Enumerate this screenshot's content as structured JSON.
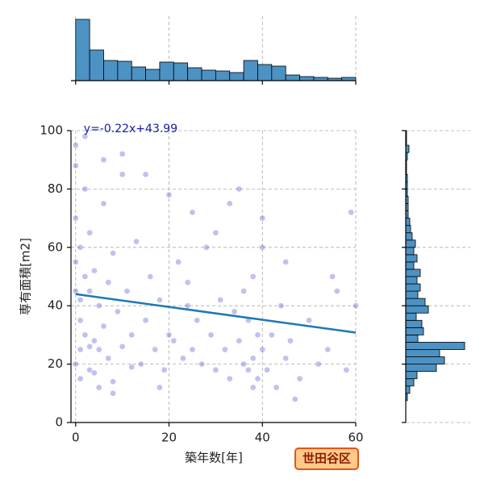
{
  "chart_data": [
    {
      "type": "scatter",
      "x_label": "築年数[年]",
      "y_label": "専有面積[m2]",
      "xlim": [
        -1,
        60
      ],
      "ylim": [
        0,
        100
      ],
      "xticks": [
        0,
        20,
        40,
        60
      ],
      "yticks": [
        0,
        20,
        40,
        60,
        80,
        100
      ],
      "grid": true,
      "color": "#3333cc",
      "x": [
        0,
        0,
        0,
        0,
        0,
        0,
        1,
        1,
        1,
        1,
        2,
        2,
        2,
        3,
        3,
        3,
        4,
        4,
        5,
        5,
        5,
        6,
        6,
        7,
        7,
        8,
        8,
        9,
        10,
        10,
        11,
        12,
        13,
        14,
        15,
        16,
        17,
        18,
        19,
        20,
        21,
        22,
        23,
        24,
        25,
        26,
        27,
        28,
        29,
        30,
        31,
        32,
        33,
        34,
        35,
        36,
        36,
        37,
        37,
        38,
        38,
        39,
        39,
        40,
        40,
        41,
        42,
        43,
        44,
        45,
        46,
        48,
        50,
        52,
        54,
        56,
        58,
        60,
        2,
        6,
        10,
        15,
        20,
        25,
        30,
        35,
        40,
        45,
        55,
        1,
        4,
        8,
        12,
        18,
        24,
        33,
        38,
        47,
        59,
        3
      ],
      "y": [
        95,
        88,
        70,
        55,
        45,
        20,
        60,
        42,
        35,
        25,
        80,
        50,
        30,
        65,
        45,
        18,
        52,
        28,
        40,
        25,
        12,
        75,
        33,
        48,
        22,
        58,
        10,
        38,
        85,
        26,
        45,
        30,
        62,
        20,
        35,
        50,
        25,
        42,
        18,
        30,
        28,
        55,
        22,
        40,
        25,
        35,
        20,
        60,
        30,
        18,
        42,
        25,
        15,
        38,
        28,
        20,
        45,
        18,
        35,
        22,
        50,
        15,
        30,
        25,
        70,
        18,
        30,
        12,
        40,
        22,
        28,
        15,
        35,
        20,
        25,
        45,
        18,
        40,
        98,
        90,
        92,
        85,
        78,
        72,
        65,
        80,
        60,
        55,
        50,
        15,
        17,
        14,
        19,
        12,
        48,
        75,
        12,
        8,
        72,
        26
      ],
      "regression": {
        "slope": -0.22,
        "intercept": 43.99,
        "label": "y=-0.22x+43.99",
        "color": "#1f77b4"
      },
      "badge": "世田谷区"
    },
    {
      "type": "histogram",
      "orientation": "vertical",
      "color": "#4c92c3",
      "bins": [
        0,
        3,
        6,
        9,
        12,
        15,
        18,
        21,
        24,
        27,
        30,
        33,
        36,
        39,
        42,
        45,
        48,
        51,
        54,
        57,
        60
      ],
      "values": [
        76,
        38,
        25,
        24,
        17,
        14,
        23,
        22,
        16,
        13,
        12,
        10,
        25,
        20,
        18,
        7,
        5,
        4,
        3,
        4
      ],
      "ylim": [
        0,
        80
      ]
    },
    {
      "type": "histogram",
      "orientation": "horizontal",
      "color": "#4c92c3",
      "bins": [
        0,
        2.5,
        5,
        7.5,
        10,
        12.5,
        15,
        17.5,
        20,
        22.5,
        25,
        27.5,
        30,
        32.5,
        35,
        37.5,
        40,
        42.5,
        45,
        47.5,
        50,
        52.5,
        55,
        57.5,
        60,
        62.5,
        65,
        67.5,
        70,
        72.5,
        75,
        77.5,
        80,
        82.5,
        85,
        87.5,
        90,
        92.5,
        95,
        97.5,
        100
      ],
      "values": [
        0,
        0,
        0,
        2,
        5,
        10,
        14,
        38,
        48,
        42,
        73,
        15,
        22,
        20,
        13,
        28,
        24,
        15,
        18,
        14,
        18,
        10,
        14,
        10,
        12,
        8,
        6,
        5,
        3,
        3,
        3,
        2,
        2,
        2,
        1,
        1,
        2,
        4,
        1,
        1
      ],
      "xlim": [
        0,
        80
      ]
    }
  ]
}
